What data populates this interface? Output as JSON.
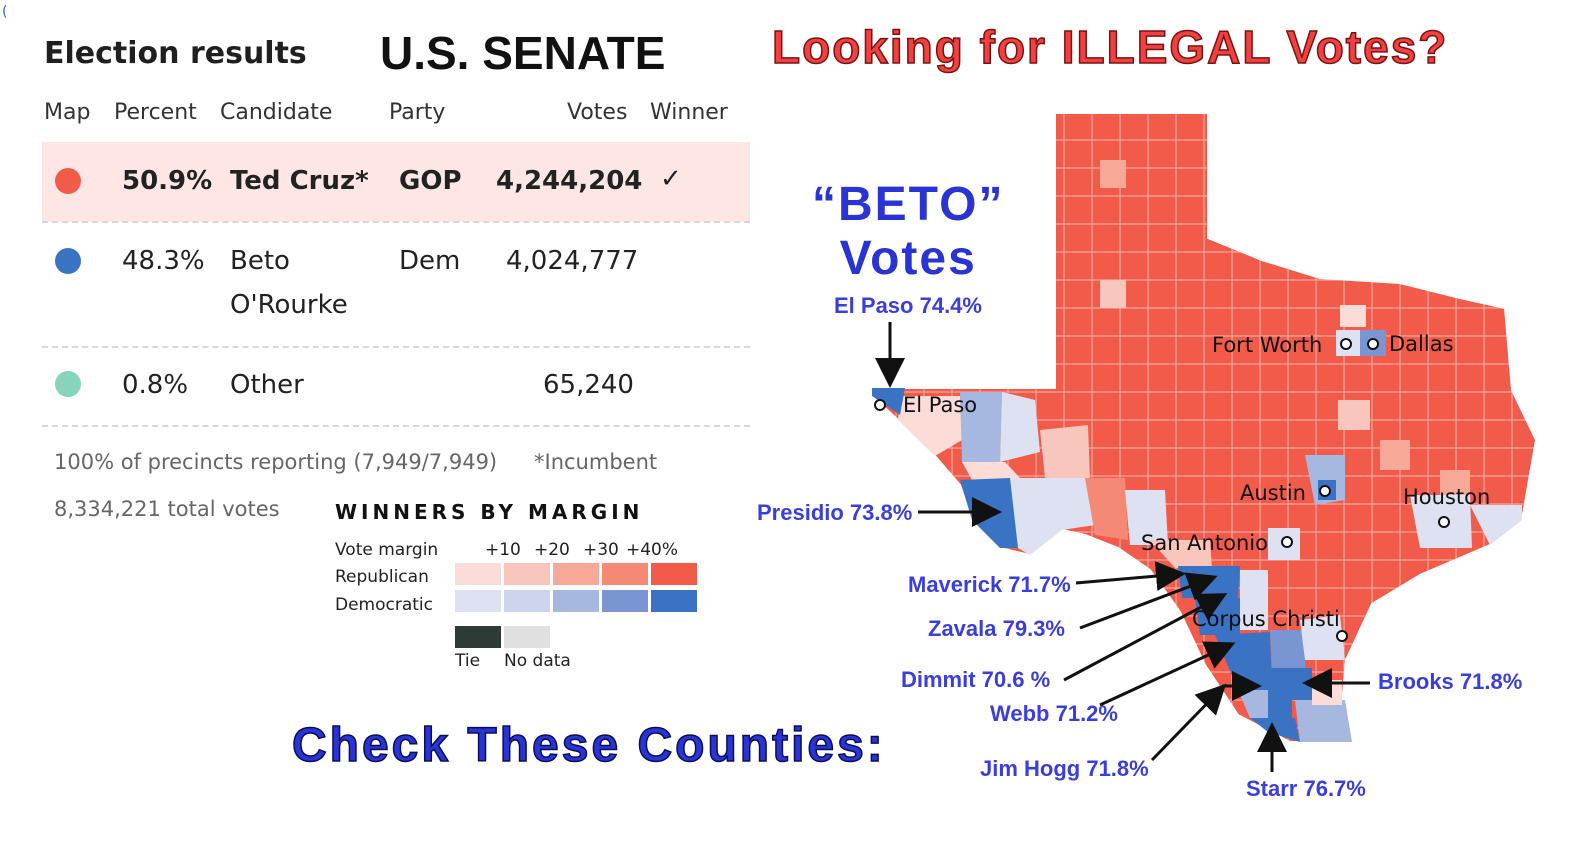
{
  "stray_mark": "(",
  "panel_title": "Election results",
  "race_title": "U.S. SENATE",
  "headline": "Looking for ILLEGAL Votes?",
  "table": {
    "headers": [
      "Map",
      "Percent",
      "Candidate",
      "Party",
      "Votes",
      "Winner"
    ],
    "rows": [
      {
        "color": "#f25a4a",
        "percent": "50.9%",
        "candidate": "Ted Cruz*",
        "candidate_line2": "",
        "party": "GOP",
        "votes": "4,244,204",
        "winner": "✓"
      },
      {
        "color": "#3a73c4",
        "percent": "48.3%",
        "candidate": "Beto",
        "candidate_line2": "O'Rourke",
        "party": "Dem",
        "votes": "4,024,777",
        "winner": ""
      },
      {
        "color": "#86d4bc",
        "percent": "0.8%",
        "candidate": "Other",
        "candidate_line2": "",
        "party": "",
        "votes": "65,240",
        "winner": ""
      }
    ]
  },
  "precincts": "100% of precincts reporting (7,949/7,949)",
  "incumbent_note": "*Incumbent",
  "total_votes": "8,334,221 total votes",
  "legend": {
    "title": "WINNERS BY MARGIN",
    "margin_label": "Vote margin",
    "ticks": [
      "+10",
      "+20",
      "+30",
      "+40%"
    ],
    "rep_label": "Republican",
    "dem_label": "Democratic",
    "rep_colors": [
      "#fbdcd7",
      "#f9c6bd",
      "#f7a998",
      "#f48a76",
      "#f25a4a"
    ],
    "dem_colors": [
      "#dde1f1",
      "#cdd5ee",
      "#a6b7e0",
      "#7a96d2",
      "#3a73c4"
    ],
    "tie_label": "Tie",
    "nodata_label": "No data",
    "tie_color": "#2e3a36",
    "nodata_color": "#e0e0e0"
  },
  "beto_title_line1": "“BETO”",
  "beto_title_line2": "Votes",
  "bottom_text": "Check These Counties:",
  "cities": [
    "El Paso",
    "Fort Worth",
    "Dallas",
    "Austin",
    "Houston",
    "San Antonio",
    "Corpus Christi"
  ],
  "county_callouts": [
    "El Paso 74.4%",
    "Presidio 73.8%",
    "Maverick 71.7%",
    "Zavala 79.3%",
    "Dimmit  70.6 %",
    "Webb 71.2%",
    "Jim Hogg 71.8%",
    "Starr 76.7%",
    "Brooks 71.8%"
  ]
}
